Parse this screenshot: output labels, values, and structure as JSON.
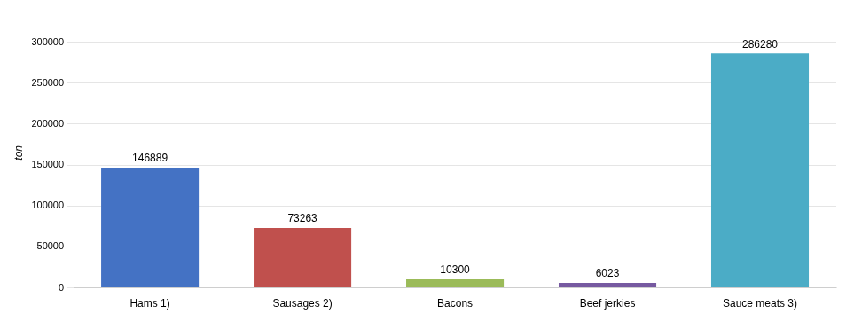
{
  "chart_data": {
    "type": "bar",
    "categories": [
      "Hams 1)",
      "Sausages 2)",
      "Bacons",
      "Beef jerkies",
      "Sauce meats 3)"
    ],
    "values": [
      146889,
      73263,
      10300,
      6023,
      286280
    ],
    "colors": [
      "#4472C4",
      "#C0504D",
      "#9BBB59",
      "#7659A0",
      "#4BACC6"
    ],
    "ylabel": "ton",
    "ylim": [
      0,
      330000
    ],
    "yticks": [
      0,
      50000,
      100000,
      150000,
      200000,
      250000,
      300000
    ],
    "grid": true,
    "data_labels": true
  }
}
